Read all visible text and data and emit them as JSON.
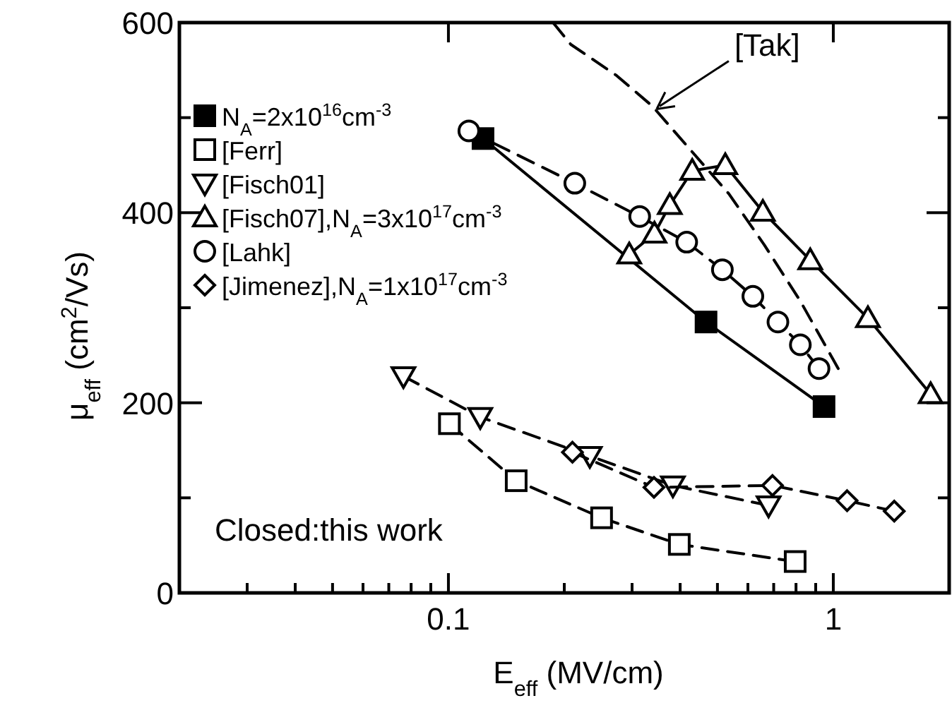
{
  "chart_data": {
    "type": "line",
    "xlabel": "E$_{eff}$ (MV/cm)",
    "ylabel": "μ$_{eff}$ (cm$^{2}$/Vs)",
    "log": "x",
    "xlim": [
      0.02,
      2
    ],
    "ylim": [
      0,
      600
    ],
    "xticks": [
      {
        "value": 0.03,
        "label": null
      },
      {
        "value": 0.04,
        "label": null
      },
      {
        "value": 0.05,
        "label": null
      },
      {
        "value": 0.06,
        "label": null
      },
      {
        "value": 0.07,
        "label": null
      },
      {
        "value": 0.08,
        "label": null
      },
      {
        "value": 0.09,
        "label": null
      },
      0.1,
      {
        "value": 0.2,
        "label": null
      },
      {
        "value": 0.3,
        "label": null
      },
      {
        "value": 0.4,
        "label": null
      },
      {
        "value": 0.5,
        "label": null
      },
      {
        "value": 0.6,
        "label": null
      },
      {
        "value": 0.7,
        "label": null
      },
      {
        "value": 0.8,
        "label": null
      },
      {
        "value": 0.9,
        "label": null
      },
      1
    ],
    "yticks": [
      0,
      {
        "value": 100,
        "label": null
      },
      200,
      {
        "value": 300,
        "label": null
      },
      400,
      {
        "value": 500,
        "label": null
      },
      600
    ],
    "grid": false,
    "legend": "top left",
    "annotations": [
      "Closed:this work"
    ],
    "series": [
      {
        "name": "N$_{A}$=2x10$^{16}$cm$^{-3}$",
        "color": "#000000",
        "marker": "square",
        "line_style": "solid",
        "x": [
          0.123,
          0.467,
          0.946
        ],
        "values": [
          478,
          285,
          196
        ]
      },
      {
        "name": "[Ferr]",
        "color": "#000000",
        "marker": "square",
        "line_style": "dashed",
        "x": [
          0.1006,
          0.15,
          0.25,
          0.398,
          0.796
        ],
        "values": [
          178,
          118,
          79,
          51,
          33
        ]
      },
      {
        "name": "[Fisch01]",
        "color": "#000000",
        "marker": "triangle-down",
        "line_style": "dashed",
        "x": [
          0.0764,
          0.121,
          0.233,
          0.383,
          0.679
        ],
        "values": [
          228,
          185,
          144,
          113,
          92
        ]
      },
      {
        "name": "[Fisch07],N$_{A}$=3x10$^{17}$cm$^{-3}$",
        "color": "#000000",
        "marker": "triangle",
        "line_style": "solid",
        "x": [
          0.295,
          0.343,
          0.376,
          0.43,
          0.524,
          0.656,
          0.871,
          1.23,
          1.79
        ],
        "values": [
          356,
          378,
          408,
          444,
          450,
          401,
          350,
          289,
          209
        ]
      },
      {
        "name": "[Lahk]",
        "color": "#000000",
        "marker": "circle",
        "line_style": "dashed",
        "x": [
          0.113,
          0.213,
          0.314,
          0.416,
          0.515,
          0.618,
          0.718,
          0.821,
          0.918
        ],
        "values": [
          486,
          431,
          396,
          369,
          340,
          312,
          285,
          261,
          236
        ]
      },
      {
        "name": "[Jimenez],N$_{A}$=1x10$^{17}$cm$^{-3}$",
        "color": "#000000",
        "marker": "diamond",
        "line_style": "dashed",
        "x": [
          0.21,
          0.342,
          0.695,
          1.086,
          1.44
        ],
        "values": [
          148,
          111,
          113,
          97,
          86
        ]
      },
      {
        "name": "[Tak]",
        "color": "#000000",
        "marker": "none",
        "line_style": "dashed",
        "x": [
          0.187,
          0.208,
          0.274,
          0.339,
          0.432,
          0.535,
          0.662,
          0.821,
          1.03
        ],
        "values": [
          600,
          577,
          544,
          512,
          463,
          420,
          366,
          307,
          236
        ]
      }
    ]
  }
}
